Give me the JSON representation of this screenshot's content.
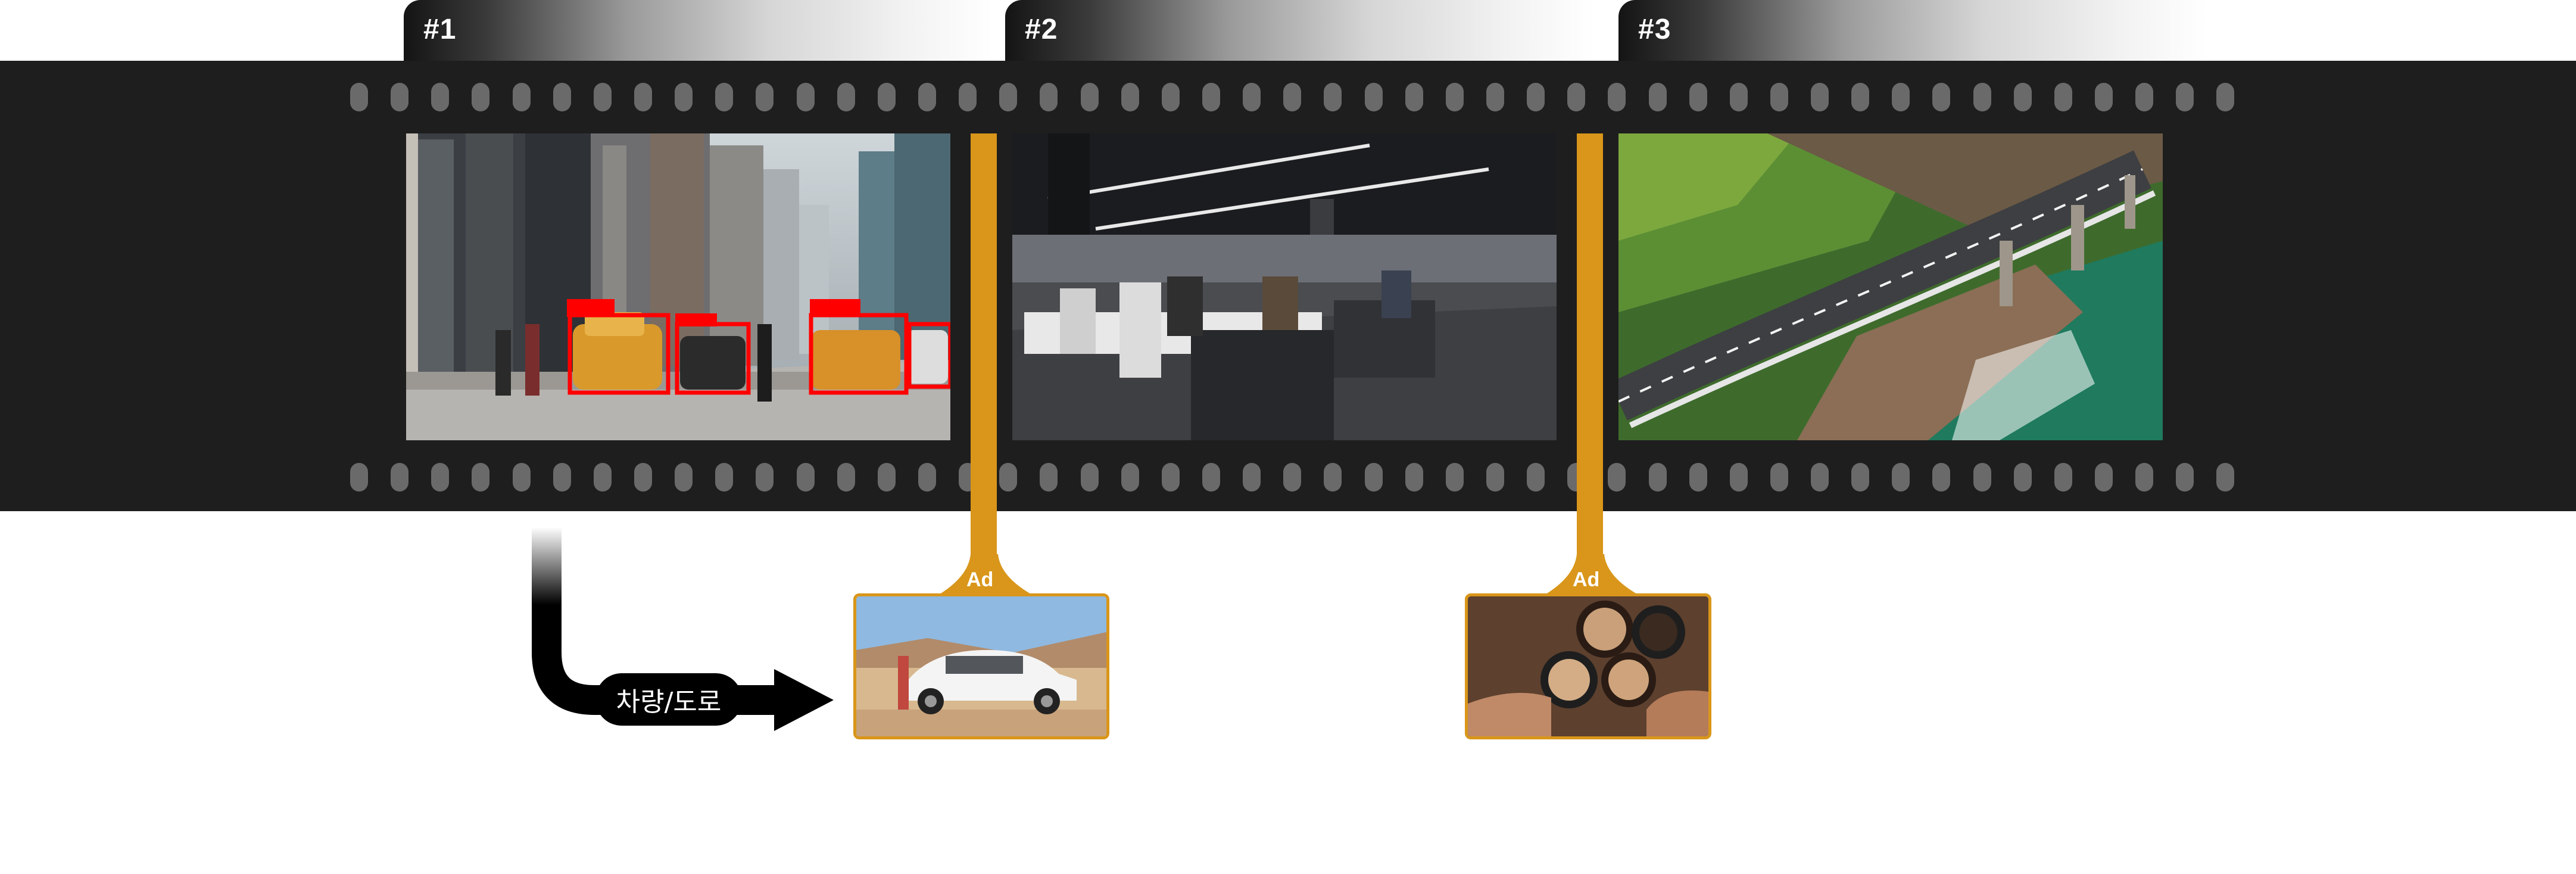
{
  "frames": [
    {
      "label": "#1",
      "image": "city-street-taxis-with-detection-boxes"
    },
    {
      "label": "#2",
      "image": "open-office-workers-at-desks"
    },
    {
      "label": "#3",
      "image": "coastal-bridge-aerial-view"
    }
  ],
  "ads": [
    {
      "label": "Ad",
      "image": "white-suv-in-desert"
    },
    {
      "label": "Ad",
      "image": "coffee-cups-toast"
    }
  ],
  "category": {
    "label": "차량/도로"
  },
  "colors": {
    "strip": "#1e1e1e",
    "ad_accent": "#d9961a",
    "detection_box": "#ff0000",
    "arrow": "#000000"
  }
}
